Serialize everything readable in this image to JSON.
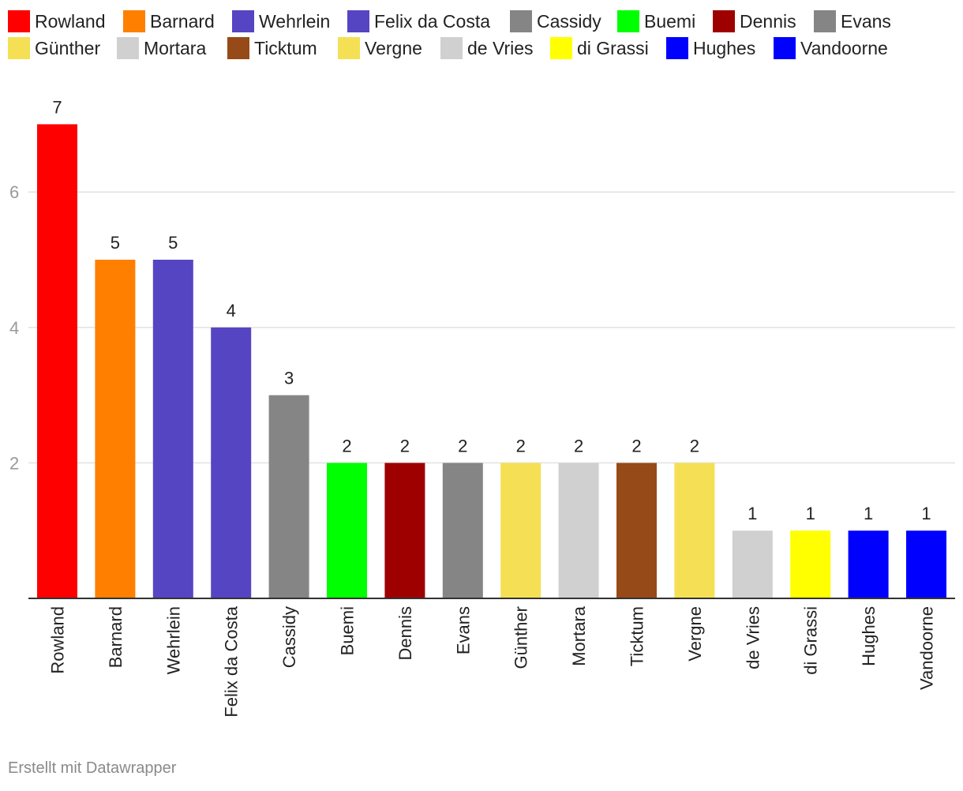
{
  "footer": {
    "credit": "Erstellt mit Datawrapper"
  },
  "chart_data": {
    "type": "bar",
    "categories": [
      "Rowland",
      "Barnard",
      "Wehrlein",
      "Felix da Costa",
      "Cassidy",
      "Buemi",
      "Dennis",
      "Evans",
      "Günther",
      "Mortara",
      "Ticktum",
      "Vergne",
      "de Vries",
      "di Grassi",
      "Hughes",
      "Vandoorne"
    ],
    "values": [
      7,
      5,
      5,
      4,
      3,
      2,
      2,
      2,
      2,
      2,
      2,
      2,
      1,
      1,
      1,
      1
    ],
    "colors": [
      "#ff0000",
      "#ff7f00",
      "#5545c3",
      "#5545c3",
      "#858585",
      "#00ff00",
      "#9e0000",
      "#858585",
      "#f5e055",
      "#d0d0d0",
      "#964a17",
      "#f5e055",
      "#d0d0d0",
      "#ffff00",
      "#0000ff",
      "#0000ff"
    ],
    "legend": [
      {
        "label": "Rowland",
        "color": "#ff0000"
      },
      {
        "label": "Barnard",
        "color": "#ff7f00"
      },
      {
        "label": "Wehrlein",
        "color": "#5545c3"
      },
      {
        "label": "Felix da Costa",
        "color": "#5545c3"
      },
      {
        "label": "Cassidy",
        "color": "#858585"
      },
      {
        "label": "Buemi",
        "color": "#00ff00"
      },
      {
        "label": "Dennis",
        "color": "#9e0000"
      },
      {
        "label": "Evans",
        "color": "#858585"
      },
      {
        "label": "Günther",
        "color": "#f5e055"
      },
      {
        "label": "Mortara",
        "color": "#d0d0d0"
      },
      {
        "label": "Ticktum",
        "color": "#964a17"
      },
      {
        "label": "Vergne",
        "color": "#f5e055"
      },
      {
        "label": "de Vries",
        "color": "#d0d0d0"
      },
      {
        "label": "di Grassi",
        "color": "#ffff00"
      },
      {
        "label": "Hughes",
        "color": "#0000ff"
      },
      {
        "label": "Vandoorne",
        "color": "#0000ff"
      }
    ],
    "yticks": [
      2,
      4,
      6
    ],
    "ylim": [
      0,
      7
    ],
    "grid": true,
    "legend_position": "top-left",
    "title": "",
    "xlabel": "",
    "ylabel": ""
  }
}
